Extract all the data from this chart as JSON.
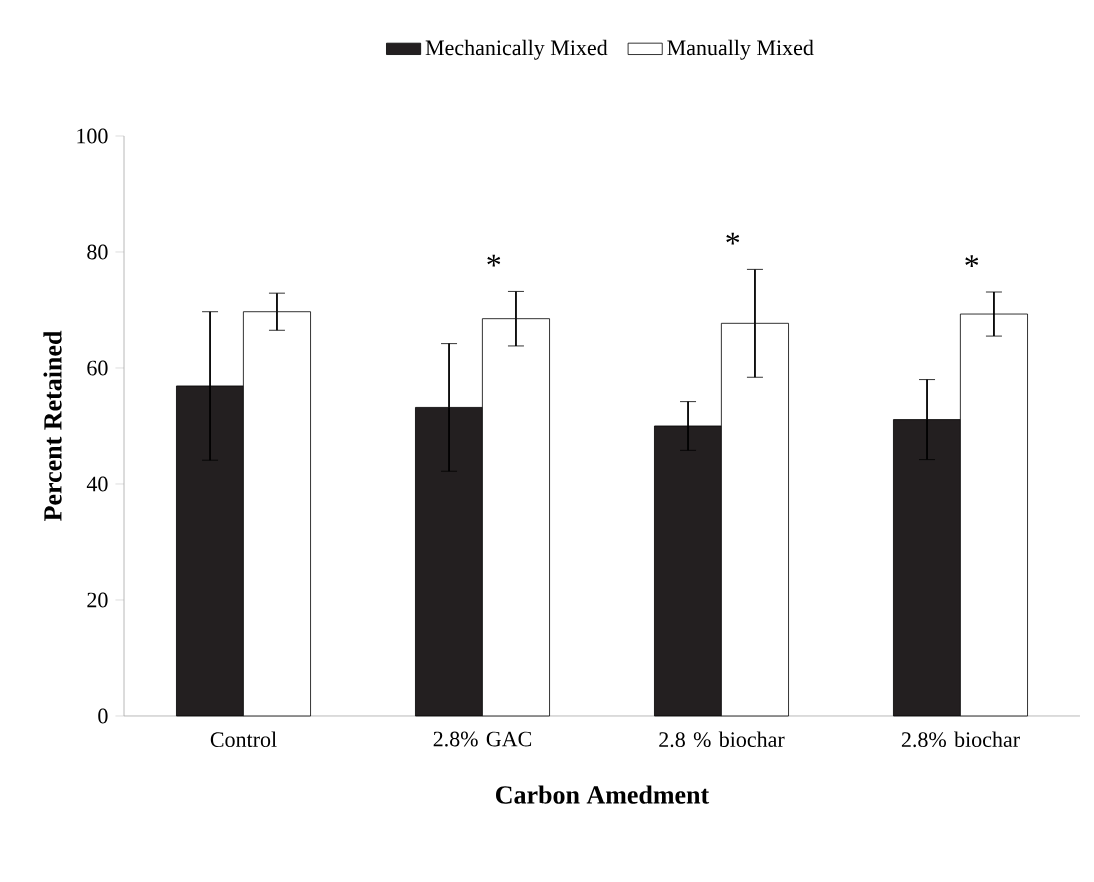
{
  "chart_data": {
    "type": "bar",
    "xlabel": "Carbon Amedment",
    "ylabel": "Percent Retained",
    "categories": [
      "Control",
      "2.8% GAC",
      "2.8 % biochar",
      "2.8% biochar"
    ],
    "series": [
      {
        "name": "Mechanically Mixed",
        "color": "#231f20",
        "values": [
          56.9,
          53.2,
          50.0,
          51.1
        ],
        "errors": [
          12.8,
          11.0,
          4.2,
          6.9
        ]
      },
      {
        "name": "Manually Mixed",
        "color": "#ffffff",
        "values": [
          69.7,
          68.5,
          67.7,
          69.3
        ],
        "errors": [
          3.2,
          4.7,
          9.3,
          3.8
        ]
      }
    ],
    "ylim": [
      0,
      100
    ],
    "yticks": [
      0,
      20,
      40,
      60,
      80,
      100
    ],
    "grid": false,
    "legend": "top",
    "annotations": [
      "*",
      "*",
      "*"
    ]
  }
}
